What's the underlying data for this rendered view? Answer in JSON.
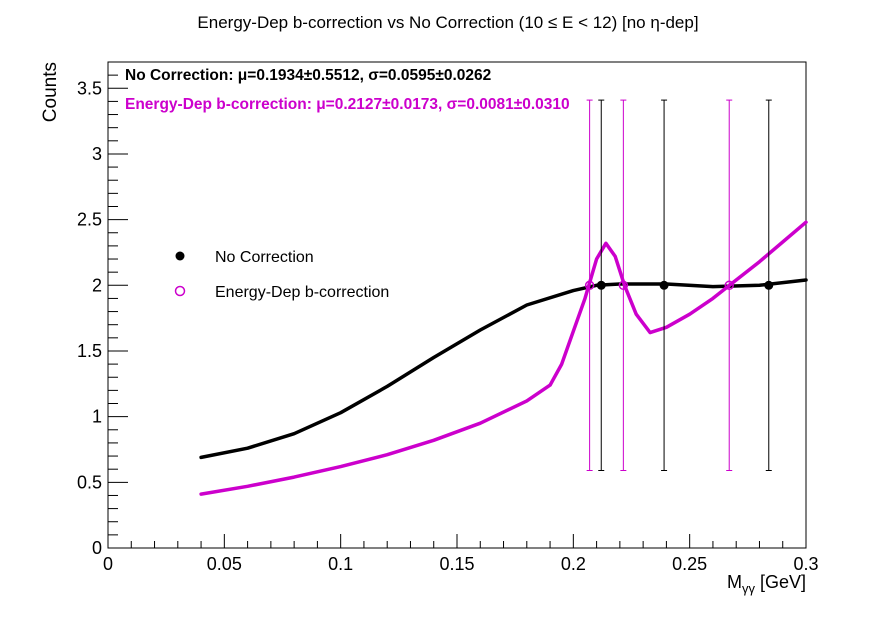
{
  "chart_data": {
    "type": "scatter",
    "title": "Energy-Dep b-correction vs No Correction   (10 ≤ E < 12)   [no η-dep]",
    "xlabel": "Mγγ [GeV]",
    "ylabel": "Counts",
    "xlim": [
      0,
      0.3
    ],
    "ylim": [
      0,
      3.7
    ],
    "grid": false,
    "legend_position": "left-middle",
    "x_ticks": [
      {
        "value": 0,
        "label": "0"
      },
      {
        "value": 0.05,
        "label": "0.05"
      },
      {
        "value": 0.1,
        "label": "0.1"
      },
      {
        "value": 0.15,
        "label": "0.15"
      },
      {
        "value": 0.2,
        "label": "0.2"
      },
      {
        "value": 0.25,
        "label": "0.25"
      },
      {
        "value": 0.3,
        "label": "0.3"
      }
    ],
    "y_ticks": [
      {
        "value": 0,
        "label": "0"
      },
      {
        "value": 0.5,
        "label": "0.5"
      },
      {
        "value": 1,
        "label": "1"
      },
      {
        "value": 1.5,
        "label": "1.5"
      },
      {
        "value": 2,
        "label": "2"
      },
      {
        "value": 2.5,
        "label": "2.5"
      },
      {
        "value": 3,
        "label": "3"
      },
      {
        "value": 3.5,
        "label": "3.5"
      }
    ],
    "annotations": [
      {
        "text": "No Correction:  μ=0.1934±0.5512,  σ=0.0595±0.0262",
        "color": "#000000"
      },
      {
        "text": "Energy-Dep b-correction:  μ=0.2127±0.0173,  σ=0.0081±0.0310",
        "color": "#cc00cc"
      }
    ],
    "series": [
      {
        "name": "No Correction",
        "color": "#000000",
        "marker": "filled-circle",
        "points": [
          {
            "x": 0.212,
            "y": 2.0,
            "err_low": 0.59,
            "err_high": 3.41
          },
          {
            "x": 0.239,
            "y": 2.0,
            "err_low": 0.59,
            "err_high": 3.41
          },
          {
            "x": 0.284,
            "y": 2.0,
            "err_low": 0.59,
            "err_high": 3.41
          }
        ],
        "fit": {
          "x_range": [
            0.04,
            0.3
          ],
          "points": [
            [
              0.04,
              0.69
            ],
            [
              0.06,
              0.76
            ],
            [
              0.08,
              0.87
            ],
            [
              0.1,
              1.03
            ],
            [
              0.12,
              1.23
            ],
            [
              0.14,
              1.45
            ],
            [
              0.16,
              1.66
            ],
            [
              0.18,
              1.85
            ],
            [
              0.2,
              1.96
            ],
            [
              0.21,
              2.0
            ],
            [
              0.22,
              2.01
            ],
            [
              0.24,
              2.01
            ],
            [
              0.26,
              1.99
            ],
            [
              0.28,
              2.0
            ],
            [
              0.3,
              2.04
            ]
          ]
        }
      },
      {
        "name": "Energy-Dep b-correction",
        "color": "#cc00cc",
        "marker": "open-circle",
        "points": [
          {
            "x": 0.207,
            "y": 2.0,
            "err_low": 0.59,
            "err_high": 3.41
          },
          {
            "x": 0.2215,
            "y": 2.0,
            "err_low": 0.59,
            "err_high": 3.41
          },
          {
            "x": 0.267,
            "y": 2.0,
            "err_low": 0.59,
            "err_high": 3.41
          }
        ],
        "fit": {
          "x_range": [
            0.04,
            0.3
          ],
          "points": [
            [
              0.04,
              0.41
            ],
            [
              0.06,
              0.47
            ],
            [
              0.08,
              0.54
            ],
            [
              0.1,
              0.62
            ],
            [
              0.12,
              0.71
            ],
            [
              0.14,
              0.82
            ],
            [
              0.16,
              0.95
            ],
            [
              0.18,
              1.12
            ],
            [
              0.19,
              1.24
            ],
            [
              0.195,
              1.4
            ],
            [
              0.2,
              1.65
            ],
            [
              0.205,
              1.9
            ],
            [
              0.21,
              2.2
            ],
            [
              0.214,
              2.32
            ],
            [
              0.218,
              2.22
            ],
            [
              0.222,
              2.0
            ],
            [
              0.227,
              1.78
            ],
            [
              0.233,
              1.64
            ],
            [
              0.24,
              1.68
            ],
            [
              0.25,
              1.78
            ],
            [
              0.26,
              1.9
            ],
            [
              0.27,
              2.04
            ],
            [
              0.28,
              2.18
            ],
            [
              0.29,
              2.33
            ],
            [
              0.3,
              2.48
            ]
          ]
        }
      }
    ]
  }
}
